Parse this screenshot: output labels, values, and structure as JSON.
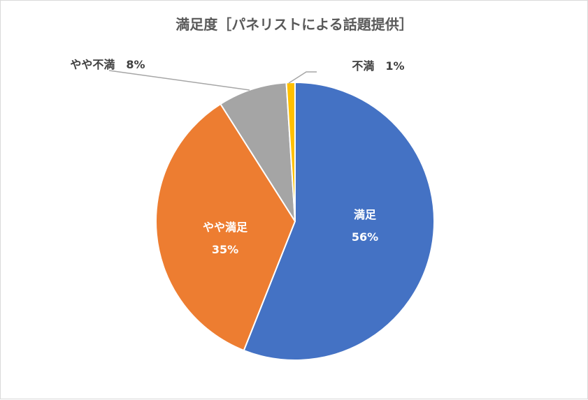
{
  "chart_data": {
    "type": "pie",
    "title": "満足度［パネリストによる話題提供］",
    "slices": [
      {
        "label": "満足",
        "value": 56,
        "percent_label": "56%",
        "color": "#4472c4"
      },
      {
        "label": "やや満足",
        "value": 35,
        "percent_label": "35%",
        "color": "#ed7d31"
      },
      {
        "label": "やや不満",
        "value": 8,
        "percent_label": "8%",
        "color": "#a5a5a5"
      },
      {
        "label": "不満",
        "value": 1,
        "percent_label": "1%",
        "color": "#ffc000"
      }
    ],
    "legend": "none",
    "data_labels": "category and percentage"
  }
}
